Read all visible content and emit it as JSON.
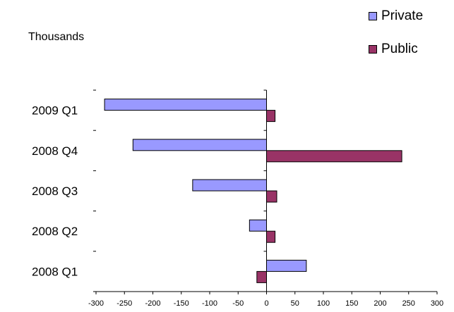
{
  "unit_label": "Thousands",
  "colors": {
    "private": "#9999ff",
    "public": "#993366"
  },
  "chart_data": {
    "type": "bar",
    "orientation": "horizontal",
    "categories": [
      "2009 Q1",
      "2008 Q4",
      "2008 Q3",
      "2008 Q2",
      "2008 Q1"
    ],
    "series": [
      {
        "name": "Private",
        "values": [
          -285,
          -235,
          -130,
          -30,
          70
        ]
      },
      {
        "name": "Public",
        "values": [
          15,
          238,
          18,
          15,
          -17
        ]
      }
    ],
    "xlim": [
      -300,
      300
    ],
    "xticks": [
      -300,
      -250,
      -200,
      -150,
      -100,
      -50,
      0,
      50,
      100,
      150,
      200,
      250,
      300
    ],
    "legend": "top-right",
    "grid": false
  }
}
